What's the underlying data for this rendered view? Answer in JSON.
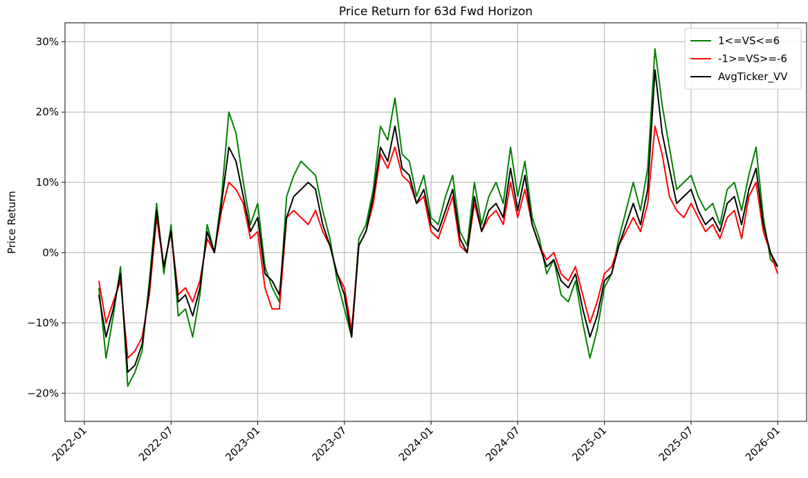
{
  "chart_data": {
    "type": "line",
    "title": "Price Return for 63d Fwd Horizon",
    "y_label": "Price Return",
    "x": [
      1.0,
      1.5,
      2.0,
      2.5,
      3.0,
      3.5,
      4.0,
      4.5,
      5.0,
      5.5,
      6.0,
      6.5,
      7.0,
      7.5,
      8.0,
      8.5,
      9.0,
      9.5,
      10.0,
      10.5,
      11.0,
      11.5,
      12.0,
      12.5,
      13.0,
      13.5,
      14.0,
      14.5,
      15.0,
      15.5,
      16.0,
      16.5,
      17.0,
      17.5,
      18.0,
      18.5,
      19.0,
      19.5,
      20.0,
      20.5,
      21.0,
      21.5,
      22.0,
      22.5,
      23.0,
      23.5,
      24.0,
      24.5,
      25.0,
      25.5,
      26.0,
      26.5,
      27.0,
      27.5,
      28.0,
      28.5,
      29.0,
      29.5,
      30.0,
      30.5,
      31.0,
      31.5,
      32.0,
      32.5,
      33.0,
      33.5,
      34.0,
      34.5,
      35.0,
      35.5,
      36.0,
      36.5,
      37.0,
      37.5,
      38.0,
      38.5,
      39.0,
      39.5,
      40.0,
      40.5,
      41.0,
      41.5,
      42.0,
      42.5,
      43.0,
      43.5,
      44.0,
      44.5,
      45.0,
      45.5,
      46.0,
      46.5,
      47.0,
      47.5,
      48.0
    ],
    "series": [
      {
        "name": "1<=VS<=6",
        "color": "#008000",
        "values": [
          -5,
          -15,
          -9,
          -2,
          -19,
          -17,
          -14,
          -4,
          7,
          -3,
          4,
          -9,
          -8,
          -12,
          -6,
          4,
          0,
          8,
          20,
          17,
          10,
          4,
          7,
          -2,
          -5,
          -7,
          8,
          11,
          13,
          12,
          11,
          6,
          2,
          -4,
          -8,
          -12,
          2,
          4,
          9,
          18,
          16,
          22,
          14,
          13,
          8,
          11,
          5,
          4,
          8,
          11,
          3,
          1,
          10,
          4,
          8,
          10,
          7,
          15,
          8,
          13,
          5,
          2,
          -3,
          -1,
          -6,
          -7,
          -4,
          -10,
          -15,
          -11,
          -5,
          -3,
          2,
          6,
          10,
          6,
          12,
          29,
          21,
          15,
          9,
          10,
          11,
          8,
          6,
          7,
          4,
          9,
          10,
          6,
          11,
          15,
          5,
          -1,
          -2
        ]
      },
      {
        "name": "-1>=VS>=-6",
        "color": "#ff0000",
        "values": [
          -4,
          -10,
          -7,
          -4,
          -15,
          -14,
          -12,
          -6,
          5,
          -2,
          3,
          -6,
          -5,
          -7,
          -4,
          2,
          0,
          6,
          10,
          9,
          7,
          2,
          3,
          -5,
          -8,
          -8,
          5,
          6,
          5,
          4,
          6,
          3,
          1,
          -3,
          -5,
          -11,
          1,
          3,
          7,
          14,
          12,
          15,
          11,
          10,
          7,
          8,
          3,
          2,
          5,
          8,
          1,
          0,
          7,
          3,
          5,
          6,
          4,
          10,
          5,
          9,
          4,
          1,
          -1,
          0,
          -3,
          -4,
          -2,
          -6,
          -10,
          -7,
          -3,
          -2,
          1,
          3,
          5,
          3,
          7,
          18,
          14,
          8,
          6,
          5,
          7,
          5,
          3,
          4,
          2,
          5,
          6,
          2,
          8,
          10,
          3,
          0,
          -3
        ]
      },
      {
        "name": "AvgTicker_VV",
        "color": "#000000",
        "values": [
          -6,
          -12,
          -8,
          -3,
          -17,
          -16,
          -13,
          -5,
          6,
          -2,
          3,
          -7,
          -6,
          -9,
          -5,
          3,
          0,
          7,
          15,
          13,
          8,
          3,
          5,
          -3,
          -4,
          -6,
          5,
          8,
          9,
          10,
          9,
          4,
          1,
          -3,
          -6,
          -12,
          1,
          3,
          8,
          15,
          13,
          18,
          12,
          11,
          7,
          9,
          4,
          3,
          6,
          9,
          2,
          0,
          8,
          3,
          6,
          7,
          5,
          12,
          6,
          11,
          4,
          1,
          -2,
          -1,
          -4,
          -5,
          -3,
          -8,
          -12,
          -9,
          -4,
          -3,
          1,
          4,
          7,
          4,
          9,
          26,
          17,
          12,
          7,
          8,
          9,
          6,
          4,
          5,
          3,
          7,
          8,
          4,
          9,
          12,
          4,
          0,
          -2
        ]
      }
    ],
    "xlim": [
      -1.34,
      50.0
    ],
    "xticks": [
      {
        "value": 0,
        "label": "2022-01"
      },
      {
        "value": 6,
        "label": "2022-07"
      },
      {
        "value": 12,
        "label": "2023-01"
      },
      {
        "value": 18,
        "label": "2023-07"
      },
      {
        "value": 24,
        "label": "2024-01"
      },
      {
        "value": 30,
        "label": "2024-07"
      },
      {
        "value": 36,
        "label": "2025-01"
      },
      {
        "value": 42,
        "label": "2025-07"
      },
      {
        "value": 48,
        "label": "2026-01"
      }
    ],
    "ylim": [
      -24,
      32.7
    ],
    "yticks": [
      {
        "value": -20,
        "label": "−20%"
      },
      {
        "value": -10,
        "label": "−10%"
      },
      {
        "value": 0,
        "label": "0%"
      },
      {
        "value": 10,
        "label": "10%"
      },
      {
        "value": 20,
        "label": "20%"
      },
      {
        "value": 30,
        "label": "30%"
      }
    ],
    "grid": true,
    "legend": "upper right"
  }
}
